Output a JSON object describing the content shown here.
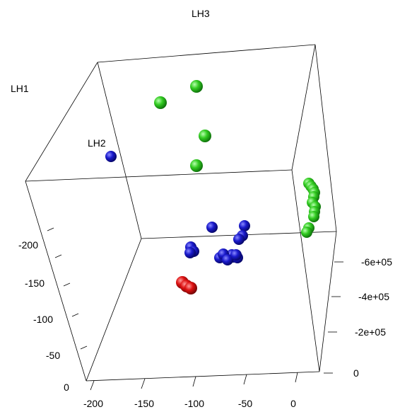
{
  "chart_data": {
    "type": "scatter",
    "projection": "3d",
    "axis_labels": {
      "x": "LH1",
      "y": "LH2",
      "z": "LH3"
    },
    "axes": {
      "front_bottom": {
        "ticks": [
          "-200",
          "-150",
          "-100",
          "-50",
          "0"
        ]
      },
      "left_vertical": {
        "ticks": [
          "-200",
          "-150",
          "-100",
          "-50",
          "0"
        ]
      },
      "right_vertical": {
        "ticks": [
          "-6e+05",
          "-4e+05",
          "-2e+05",
          "0"
        ]
      }
    },
    "colors": {
      "green": "#22bb22",
      "blue": "#1a1acc",
      "red": "#dd1111"
    },
    "series": [
      {
        "color": "green",
        "count": 15
      },
      {
        "color": "blue",
        "count": 17
      },
      {
        "color": "red",
        "count": 3
      }
    ]
  }
}
